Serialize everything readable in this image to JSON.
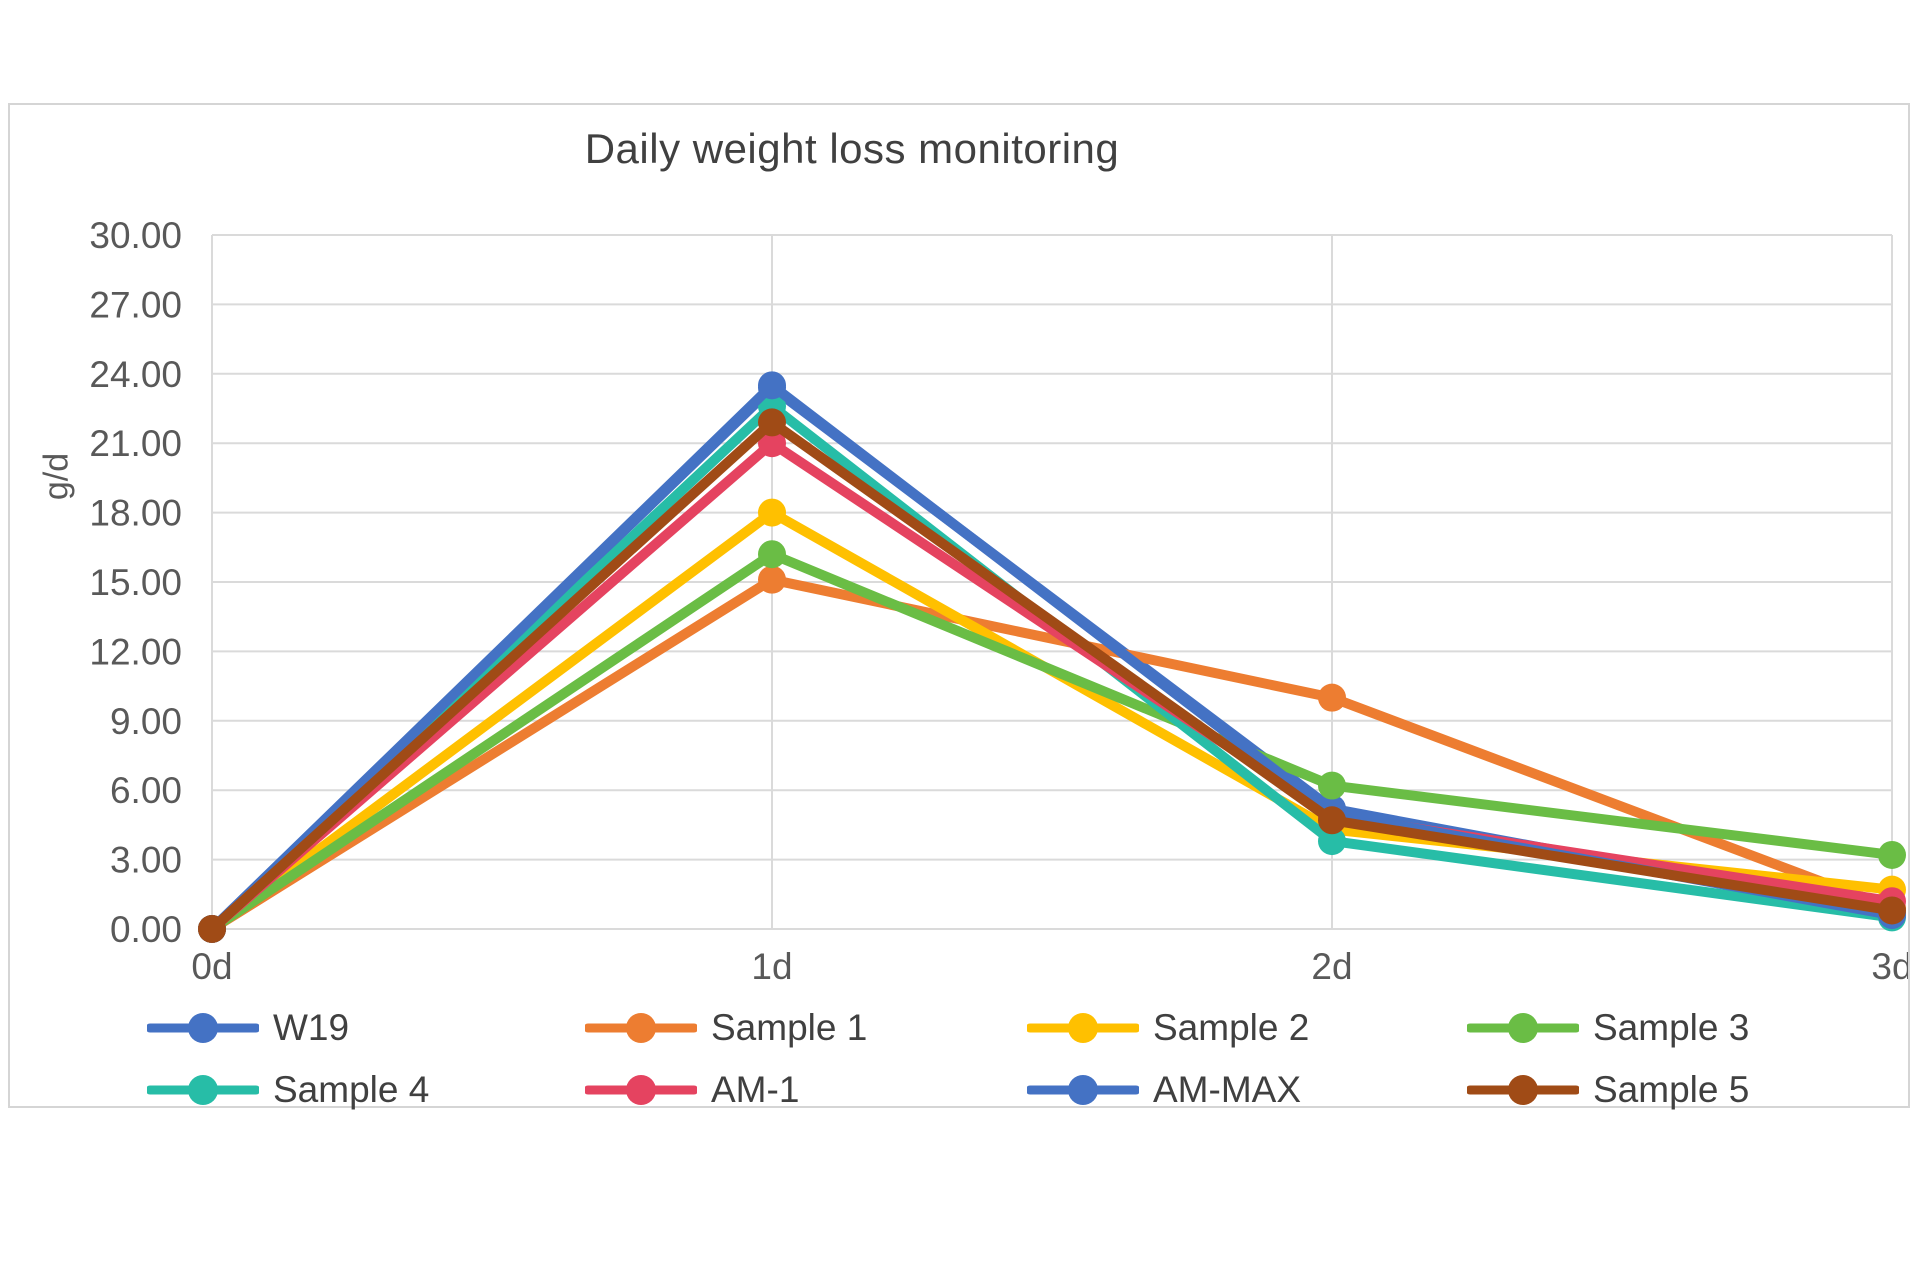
{
  "chart": {
    "title": "Daily weight loss monitoring",
    "y_axis_title": "g/d",
    "title_color": "#404040",
    "tick_label_color": "#595959",
    "gridline_color": "#dadada",
    "frame_border_color": "#d5d5d5",
    "background_color": "#ffffff"
  },
  "chart_data": {
    "type": "line",
    "title": "Daily weight loss monitoring",
    "xlabel": "",
    "ylabel": "g/d",
    "categories": [
      "0d",
      "1d",
      "2d",
      "3d"
    ],
    "ylim": [
      0,
      30
    ],
    "ytick_step": 3,
    "ytick_decimals": 2,
    "grid": true,
    "legend_position": "bottom",
    "legend_rows": [
      [
        "W19",
        "Sample 1",
        "Sample 2",
        "Sample 3"
      ],
      [
        "Sample 4",
        "AM-1",
        "AM-MAX",
        "Sample 5"
      ]
    ],
    "series": [
      {
        "name": "W19",
        "color": "#4472C4",
        "values": [
          0.0,
          23.4,
          5.2,
          0.7
        ]
      },
      {
        "name": "Sample 1",
        "color": "#ED7D31",
        "values": [
          0.0,
          15.1,
          10.0,
          0.9
        ]
      },
      {
        "name": "Sample 2",
        "color": "#FFC000",
        "values": [
          0.0,
          18.0,
          4.3,
          1.7
        ]
      },
      {
        "name": "Sample 3",
        "color": "#6ABD45",
        "values": [
          0.0,
          16.2,
          6.2,
          3.2
        ]
      },
      {
        "name": "Sample 4",
        "color": "#27BDA7",
        "values": [
          0.0,
          22.6,
          3.8,
          0.5
        ]
      },
      {
        "name": "AM-1",
        "color": "#E54360",
        "values": [
          0.0,
          21.0,
          4.9,
          1.2
        ]
      },
      {
        "name": "AM-MAX",
        "color": "#4472C4",
        "values": [
          0.0,
          23.5,
          5.0,
          0.6
        ]
      },
      {
        "name": "Sample 5",
        "color": "#A04B16",
        "values": [
          0.0,
          21.9,
          4.7,
          0.8
        ]
      }
    ]
  }
}
